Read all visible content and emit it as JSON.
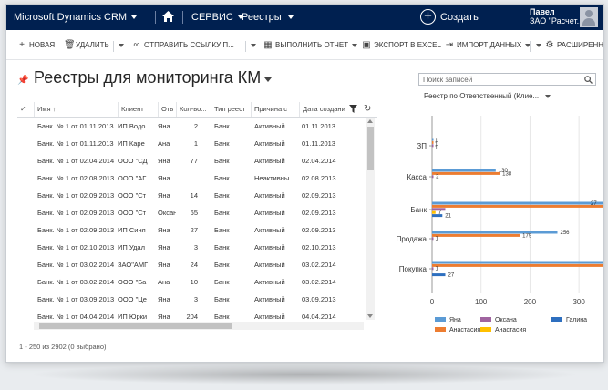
{
  "nav": {
    "app_title": "Microsoft Dynamics CRM",
    "area": "СЕРВИС",
    "section": "Реестры",
    "create_label": "Создать",
    "user_name": "Павел",
    "user_org": "ЗАО \"Расчет...",
    "bar_color": "#002050"
  },
  "commands": {
    "new": "НОВАЯ",
    "delete": "УДАЛИТЬ",
    "send_link": "ОТПРАВИТЬ ССЫЛКУ П...",
    "run_report": "ВЫПОЛНИТЬ ОТЧЕТ",
    "export_excel": "ЭКСПОРТ В EXCEL",
    "import_data": "ИМПОРТ ДАННЫХ",
    "advanced": "РАСШИРЕННЫ"
  },
  "page": {
    "title": "Реестры для мониторинга КМ",
    "search_placeholder": "Поиск записей",
    "chart_title": "Реестр по Ответственный (Клие..."
  },
  "grid": {
    "columns": [
      "Имя ↑",
      "Клиент",
      "Отв",
      "Кол-во...",
      "Тип реест",
      "Причина с",
      "Дата создани"
    ],
    "rows": [
      [
        "Банк. № 1 от 01.11.2013",
        "ИП Водо",
        "Яна",
        "2",
        "Банк",
        "Активный",
        "01.11.2013"
      ],
      [
        "Банк. № 1 от 01.11.2013",
        "ИП Каре",
        "Ана",
        "1",
        "Банк",
        "Активный",
        "01.11.2013"
      ],
      [
        "Банк. № 1 от 02.04.2014",
        "ООО \"СД",
        "Яна",
        "77",
        "Банк",
        "Активный",
        "02.04.2014"
      ],
      [
        "Банк. № 1 от 02.08.2013",
        "ООО \"АГ",
        "Яна",
        "",
        "Банк",
        "Неактивны",
        "02.08.2013"
      ],
      [
        "Банк. № 1 от 02.09.2013",
        "ООО \"Ст",
        "Яна",
        "14",
        "Банк",
        "Активный",
        "02.09.2013"
      ],
      [
        "Банк. № 1 от 02.09.2013",
        "ООО \"Ст",
        "Оксана",
        "65",
        "Банк",
        "Активный",
        "02.09.2013"
      ],
      [
        "Банк. № 1 от 02.09.2013",
        "ИП Синя",
        "Яна",
        "27",
        "Банк",
        "Активный",
        "02.09.2013"
      ],
      [
        "Банк. № 1 от 02.10.2013",
        "ИП Удал",
        "Яна",
        "3",
        "Банк",
        "Активный",
        "02.10.2013"
      ],
      [
        "Банк. № 1 от 03.02.2014",
        "ЗАО\"АМГ",
        "Яна",
        "24",
        "Банк",
        "Активный",
        "03.02.2014"
      ],
      [
        "Банк. № 1 от 03.02.2014",
        "ООО \"Ба",
        "Ана",
        "10",
        "Банк",
        "Активный",
        "03.02.2014"
      ],
      [
        "Банк. № 1 от 03.09.2013",
        "ООО \"Це",
        "Яна",
        "3",
        "Банк",
        "Активный",
        "03.09.2013"
      ],
      [
        "Банк. № 1 от 04.04.2014",
        "ИП Юрки",
        "Яна",
        "204",
        "Банк",
        "Активный",
        "04.04.2014"
      ]
    ],
    "status": "1 - 250 из 2902 (0 выбрано)"
  },
  "chart_data": {
    "type": "bar",
    "orientation": "horizontal",
    "categories": [
      "ЗП",
      "Касса",
      "Банк",
      "Продажа",
      "Покупка"
    ],
    "series": [
      {
        "name": "Яна",
        "color": "#5b9bd5",
        "values": [
          1,
          130,
          350,
          256,
          350
        ]
      },
      {
        "name": "Анастасия",
        "color": "#ed7d31",
        "values": [
          1,
          138,
          350,
          179,
          350
        ]
      },
      {
        "name": "Оксана",
        "color": "#a064a0",
        "values": [
          1,
          2,
          27,
          1,
          1
        ]
      },
      {
        "name": "Анастасия",
        "color": "#ffc000",
        "values": [
          0,
          0,
          7,
          0,
          0
        ]
      },
      {
        "name": "Галина",
        "color": "#2e6fbf",
        "values": [
          0,
          0,
          21,
          0,
          27
        ]
      }
    ],
    "point_labels": [
      [
        "1",
        "1",
        "1"
      ],
      [
        "130",
        "138",
        "2"
      ],
      [
        "27",
        "21",
        "7"
      ],
      [
        "256",
        "179",
        "1"
      ],
      [
        "1",
        "27"
      ]
    ],
    "xticks": [
      "0",
      "100",
      "200",
      "300"
    ],
    "xlim": [
      0,
      350
    ],
    "legend": {
      "items": [
        "Яна",
        "Оксана",
        "Галина",
        "Анастасия",
        "Анастасия"
      ],
      "position": "bottom"
    }
  }
}
